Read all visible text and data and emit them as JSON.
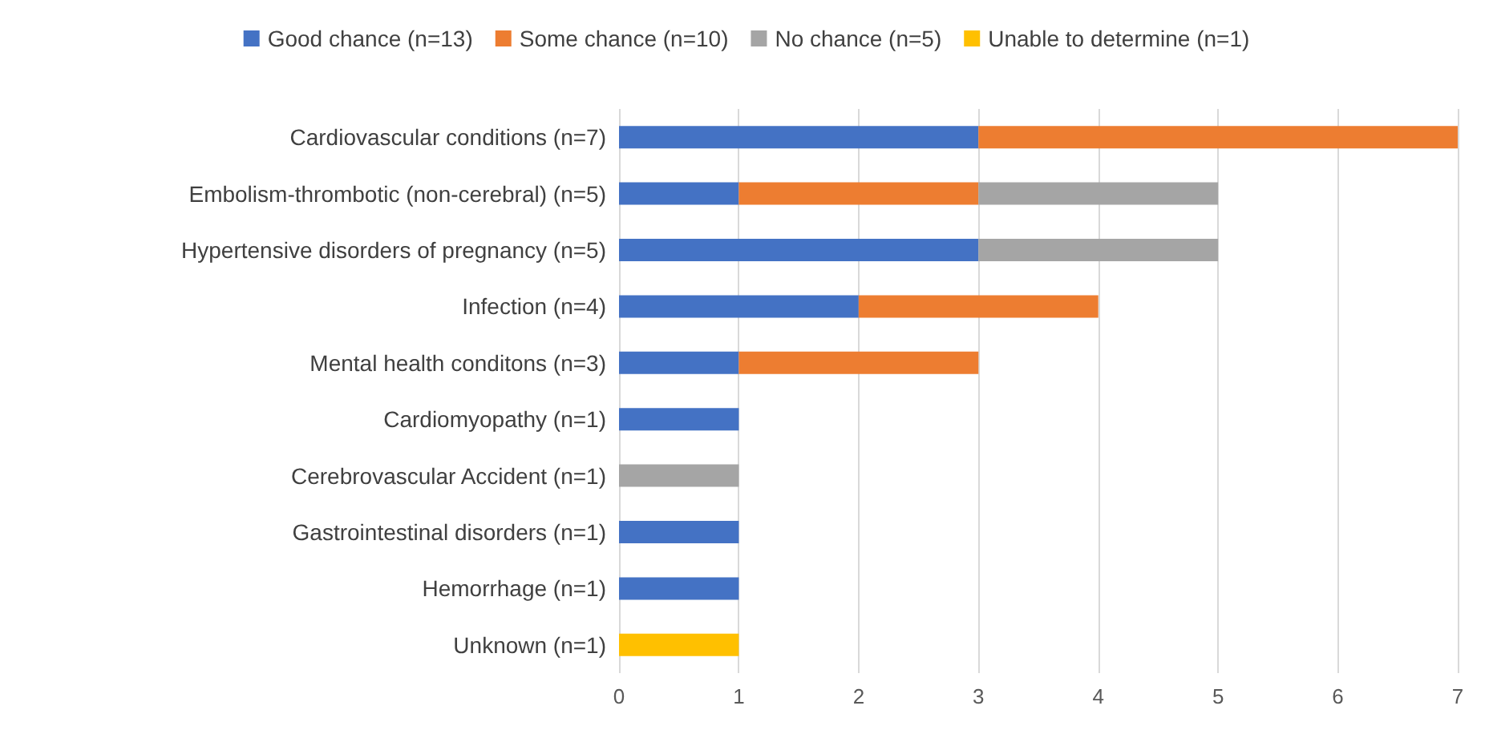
{
  "chart_data": {
    "type": "bar",
    "orientation": "horizontal",
    "stacked": true,
    "legend": "top",
    "grid": "x",
    "categories": [
      "Cardiovascular conditions (n=7)",
      "Embolism-thrombotic (non-cerebral) (n=5)",
      "Hypertensive disorders of pregnancy (n=5)",
      "Infection (n=4)",
      "Mental health conditons (n=3)",
      "Cardiomyopathy (n=1)",
      "Cerebrovascular Accident (n=1)",
      "Gastrointestinal disorders (n=1)",
      "Hemorrhage (n=1)",
      "Unknown (n=1)"
    ],
    "series": [
      {
        "name": "Good chance (n=13)",
        "color": "#4472c4",
        "values": [
          3,
          1,
          3,
          2,
          1,
          1,
          null,
          1,
          1,
          null
        ]
      },
      {
        "name": "Some chance (n=10)",
        "color": "#ed7d31",
        "values": [
          4,
          2,
          null,
          2,
          2,
          null,
          null,
          null,
          null,
          null
        ]
      },
      {
        "name": "No chance (n=5)",
        "color": "#a5a5a5",
        "values": [
          null,
          2,
          2,
          null,
          null,
          null,
          1,
          null,
          null,
          null
        ]
      },
      {
        "name": "Unable to determine (n=1)",
        "color": "#ffc000",
        "values": [
          null,
          null,
          null,
          null,
          null,
          null,
          null,
          null,
          null,
          1
        ]
      }
    ],
    "xlim": [
      0,
      7
    ],
    "xticks": [
      0,
      1,
      2,
      3,
      4,
      5,
      6,
      7
    ]
  }
}
